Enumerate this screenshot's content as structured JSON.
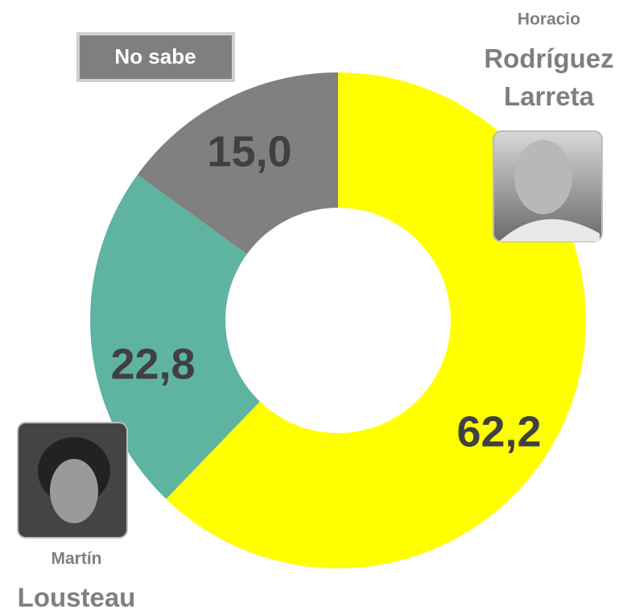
{
  "chart_data": {
    "type": "donut",
    "categories": [
      "Rodríguez Larreta",
      "Lousteau",
      "No sabe"
    ],
    "first_names": [
      "Horacio",
      "Martín",
      null
    ],
    "values": [
      62.2,
      22.8,
      15.0
    ],
    "value_labels": [
      "62,2",
      "22,8",
      "15,0"
    ],
    "colors": [
      "#ffff00",
      "#5fb3a1",
      "#808080"
    ]
  }
}
